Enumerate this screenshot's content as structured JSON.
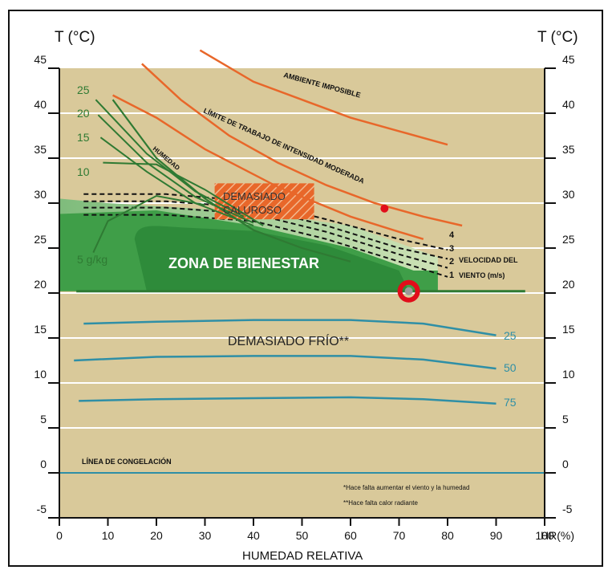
{
  "chart_data": {
    "type": "line",
    "title": "",
    "ylabel_left": "T (°C)",
    "ylabel_right": "T (°C)",
    "xlabel": "HUMEDAD RELATIVA",
    "xlabel_end": "HR(%)",
    "xlim": [
      0,
      100
    ],
    "ylim": [
      -5,
      45
    ],
    "x_ticks": [
      "0",
      "10",
      "20",
      "30",
      "40",
      "50",
      "60",
      "70",
      "80",
      "90",
      "100"
    ],
    "y_ticks": [
      "-5",
      "0",
      "5",
      "10",
      "15",
      "20",
      "25",
      "30",
      "35",
      "40",
      "45"
    ],
    "grid_y": true,
    "colors": {
      "background": "#d9c99a",
      "comfort_dark": "#2e8b3a",
      "comfort_mid": "#3f9e48",
      "comfort_light": "#8cc489",
      "orange_line": "#e8672a",
      "green_line": "#2f7a33",
      "blue_line": "#2f8fa6",
      "marker": "#e10d1a"
    },
    "regions": {
      "comfort": "ZONA DE BIENESTAR",
      "too_hot": "DEMASIADO CALUROSO",
      "too_cold": "DEMASIADO FRÍO**"
    },
    "lines": {
      "impossible": "AMBIENTE IMPOSIBLE",
      "work_limit": "LÍMITE DE TRABAJO DE INTENSIDAD MODERADA",
      "humidity": "HUMEDAD",
      "freezing": "LÍNEA DE CONGELACIÓN"
    },
    "humidity_labels": [
      "25",
      "20",
      "15",
      "10",
      "5 g/kg"
    ],
    "wind_speed_labels": [
      "4",
      "3",
      "2",
      "1"
    ],
    "wind_label_1": "VELOCIDAD DEL",
    "wind_label_2": "VIENTO (m/s)",
    "radiant_labels": [
      "25",
      "50",
      "75"
    ],
    "notes": [
      "*Hace falta aumentar el viento y la humedad",
      "**Hace falta calor radiante"
    ],
    "series": [
      {
        "name": "AMBIENTE IMPOSIBLE",
        "x": [
          29,
          40,
          50,
          60,
          70,
          80
        ],
        "y": [
          47,
          43.5,
          41.5,
          39.5,
          38,
          36.5
        ]
      },
      {
        "name": "LÍMITE DE TRABAJO DE INTENSIDAD MODERADA",
        "x": [
          17,
          25,
          35,
          45,
          55,
          65,
          75,
          83
        ],
        "y": [
          45.5,
          41.5,
          37.5,
          34.5,
          32,
          30,
          28.5,
          27.5
        ]
      },
      {
        "name": "HUMEDAD",
        "x": [
          11,
          20,
          30,
          40,
          50,
          60
        ],
        "y": [
          41.5,
          35,
          30.5,
          27,
          25,
          23.5
        ]
      },
      {
        "name": "25",
        "x": [
          5,
          20,
          40,
          60,
          75,
          90
        ],
        "y": [
          16.6,
          16.8,
          17.0,
          17.0,
          16.6,
          15.3
        ]
      },
      {
        "name": "50",
        "x": [
          3,
          20,
          40,
          60,
          75,
          90
        ],
        "y": [
          12.5,
          12.9,
          13.0,
          13.0,
          12.6,
          11.6
        ]
      },
      {
        "name": "75",
        "x": [
          4,
          20,
          40,
          60,
          75,
          90
        ],
        "y": [
          8.0,
          8.2,
          8.3,
          8.4,
          8.2,
          7.7
        ]
      }
    ],
    "points": [
      {
        "x": 67,
        "y": 29.4
      },
      {
        "x": 72,
        "y": 20.2
      }
    ]
  }
}
